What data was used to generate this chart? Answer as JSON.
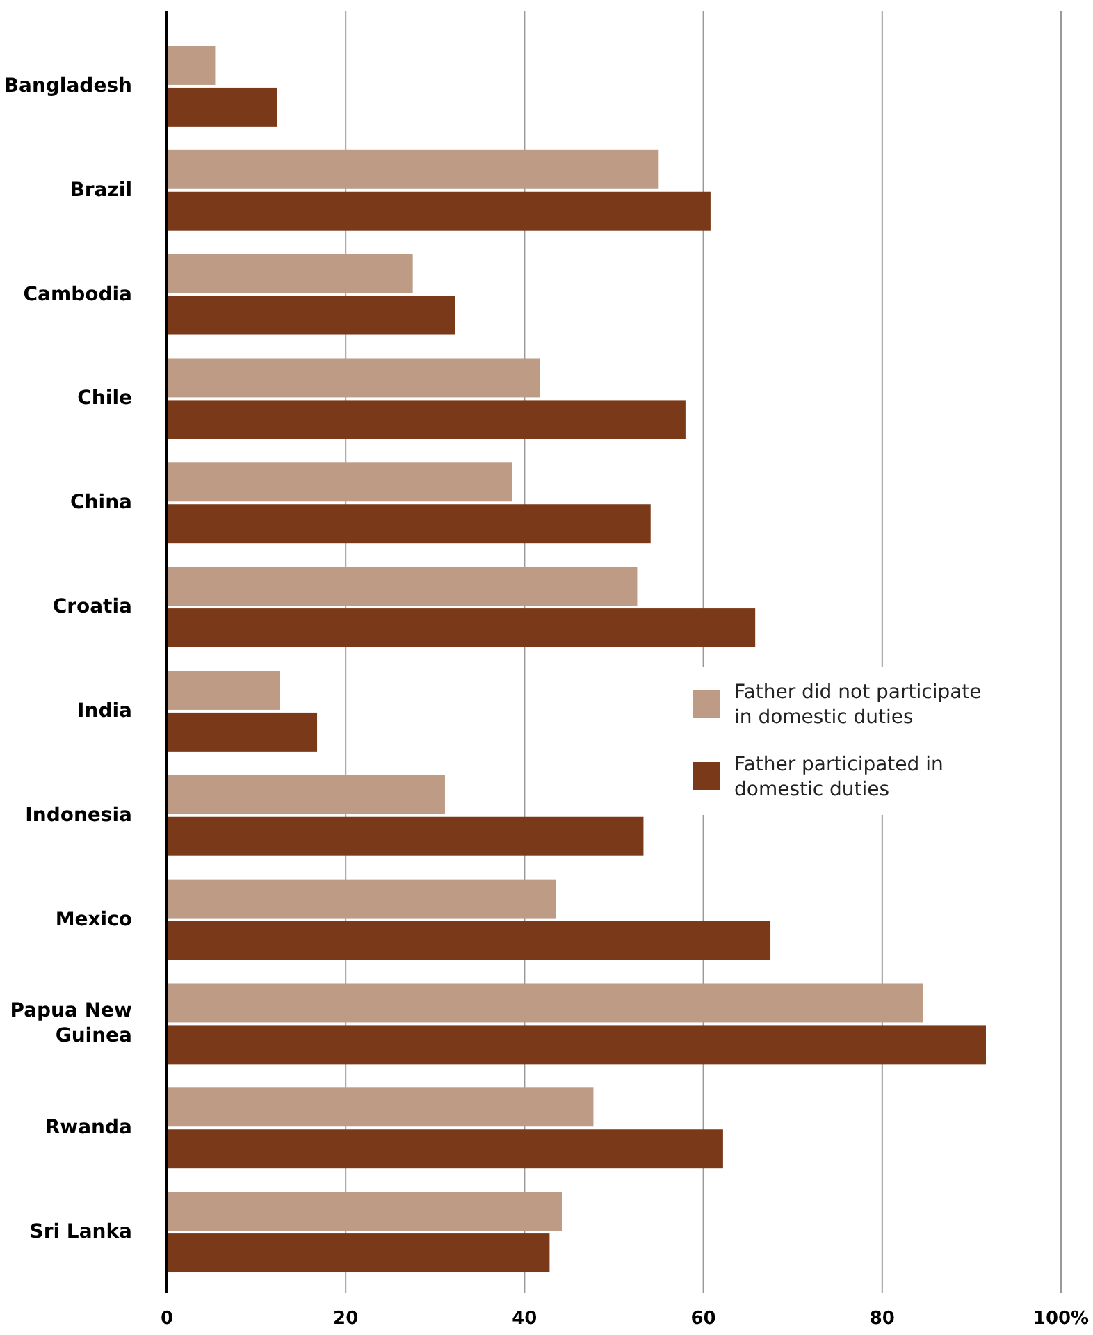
{
  "chart_data": {
    "type": "bar",
    "orientation": "horizontal",
    "categories": [
      "Bangladesh",
      "Brazil",
      "Cambodia",
      "Chile",
      "China",
      "Croatia",
      "India",
      "Indonesia",
      "Mexico",
      "Papua New Guinea",
      "Rwanda",
      "Sri Lanka"
    ],
    "series": [
      {
        "name": "Father did not participate in domestic duties",
        "color": "#be9b84",
        "values": [
          5.4,
          55,
          27.5,
          41.7,
          38.6,
          52.6,
          12.6,
          31.1,
          43.5,
          84.6,
          47.7,
          44.2
        ]
      },
      {
        "name": "Father participated in domestic duties",
        "color": "#7a3919",
        "values": [
          12.3,
          60.8,
          32.2,
          58,
          54.1,
          65.8,
          16.8,
          53.3,
          67.5,
          91.6,
          62.2,
          42.8
        ]
      }
    ],
    "xlim": [
      0,
      100
    ],
    "xticks": [
      0,
      20,
      40,
      60,
      80,
      {
        "value": 100,
        "label": "100%"
      }
    ],
    "grid": "x",
    "legend": "right"
  }
}
